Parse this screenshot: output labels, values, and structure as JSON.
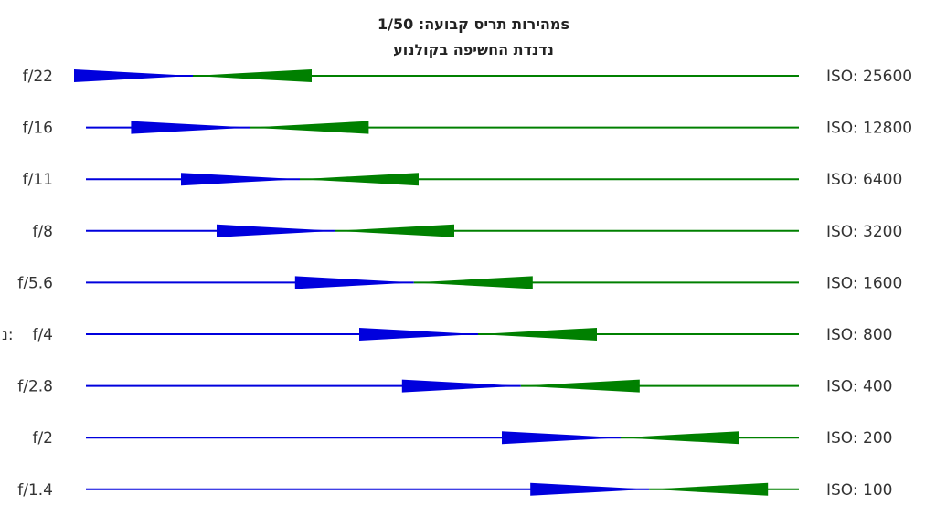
{
  "title_line1": "מהירות תריס קבועה: 1/50s",
  "title_line2": "נדנדת החשיפה בקולנוע",
  "colors": {
    "aperture": "#0000dd",
    "iso": "#008000",
    "text": "#333333",
    "title": "#222222"
  },
  "rows": [
    {
      "aperture": "f/22",
      "iso": "ISO: 25600",
      "position": 0.15
    },
    {
      "aperture": "f/16",
      "iso": "ISO: 12800",
      "position": 0.23
    },
    {
      "aperture": "f/11",
      "iso": "ISO: 6400",
      "position": 0.3
    },
    {
      "aperture": "f/8",
      "iso": "ISO: 3200",
      "position": 0.35
    },
    {
      "aperture": "f/5.6",
      "iso": "ISO: 1600",
      "position": 0.46
    },
    {
      "aperture": "f/4",
      "iso": "ISO: 800",
      "position": 0.55,
      "aperture_prefix": "נ:"
    },
    {
      "aperture": "f/2.8",
      "iso": "ISO: 400",
      "position": 0.61
    },
    {
      "aperture": "f/2",
      "iso": "ISO: 200",
      "position": 0.75
    },
    {
      "aperture": "f/1.4",
      "iso": "ISO: 100",
      "position": 0.79
    }
  ]
}
